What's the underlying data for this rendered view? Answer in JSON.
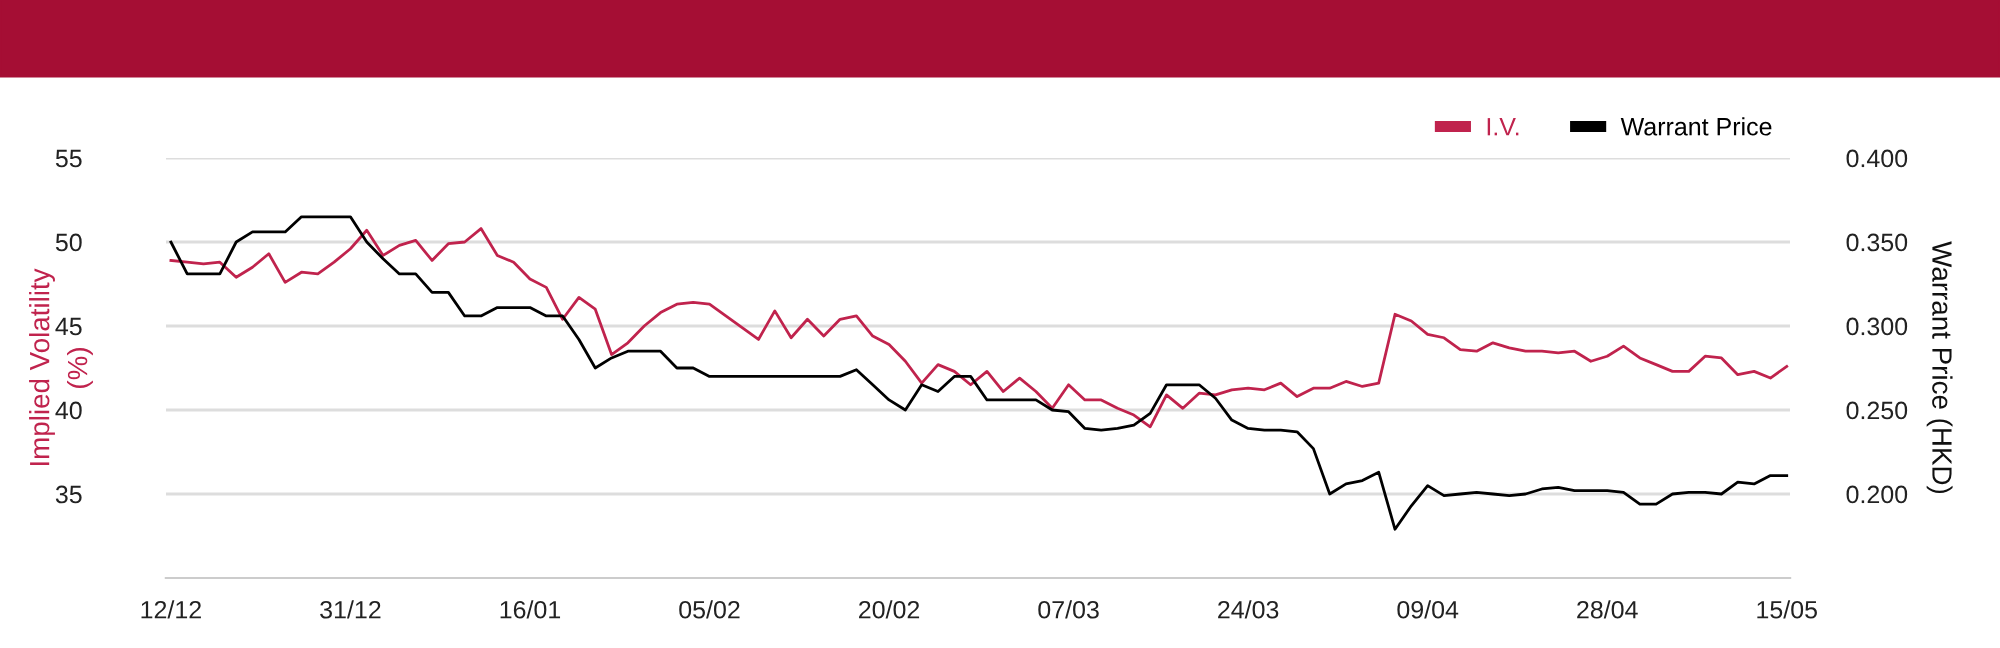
{
  "chart_data": {
    "type": "line",
    "categories": [
      "12/12",
      null,
      null,
      null,
      null,
      null,
      null,
      null,
      null,
      null,
      null,
      "31/12",
      null,
      null,
      null,
      null,
      null,
      null,
      null,
      null,
      null,
      null,
      "16/01",
      null,
      null,
      null,
      null,
      null,
      null,
      null,
      null,
      null,
      null,
      "05/02",
      null,
      null,
      null,
      null,
      null,
      null,
      null,
      null,
      null,
      null,
      "20/02",
      null,
      null,
      null,
      null,
      null,
      null,
      null,
      null,
      null,
      null,
      "07/03",
      null,
      null,
      null,
      null,
      null,
      null,
      null,
      null,
      null,
      null,
      "24/03",
      null,
      null,
      null,
      null,
      null,
      null,
      null,
      null,
      null,
      null,
      "09/04",
      null,
      null,
      null,
      null,
      null,
      null,
      null,
      null,
      null,
      null,
      "28/04",
      null,
      null,
      null,
      null,
      null,
      null,
      null,
      null,
      null,
      null,
      "15/05"
    ],
    "series": [
      {
        "name": "I.V.",
        "color": "#c0234d",
        "values": [
          48.9,
          48.8,
          48.7,
          48.8,
          47.9,
          48.5,
          49.3,
          47.6,
          48.2,
          48.1,
          48.8,
          49.6,
          50.7,
          49.2,
          49.8,
          50.1,
          48.9,
          49.9,
          50.0,
          50.8,
          49.2,
          48.8,
          47.8,
          47.3,
          45.4,
          46.7,
          46.0,
          43.3,
          44.0,
          45.0,
          45.8,
          46.3,
          46.4,
          46.3,
          45.6,
          44.9,
          44.2,
          45.9,
          44.3,
          45.4,
          44.4,
          45.4,
          45.6,
          44.4,
          43.9,
          42.9,
          41.6,
          42.7,
          42.3,
          41.5,
          42.3,
          41.1,
          41.9,
          41.1,
          40.1,
          41.5,
          40.6,
          40.6,
          40.1,
          39.7,
          39.0,
          40.9,
          40.1,
          41.0,
          40.9,
          41.2,
          41.3,
          41.2,
          41.6,
          40.8,
          41.3,
          41.3,
          41.7,
          41.4,
          41.6,
          45.7,
          45.3,
          44.5,
          44.3,
          43.6,
          43.5,
          44.0,
          43.7,
          43.5,
          43.5,
          43.4,
          43.5,
          42.9,
          43.2,
          43.8,
          43.1,
          42.7,
          42.3,
          42.3,
          43.2,
          43.1,
          42.1,
          42.3,
          41.9,
          42.6
        ]
      },
      {
        "name": "Warrant Price",
        "color": "#000000",
        "axis": "y2",
        "values": [
          0.35,
          0.331,
          0.331,
          0.331,
          0.35,
          0.356,
          0.356,
          0.356,
          0.365,
          0.365,
          0.365,
          0.365,
          0.35,
          0.34,
          0.331,
          0.331,
          0.32,
          0.32,
          0.306,
          0.306,
          0.311,
          0.311,
          0.311,
          0.306,
          0.306,
          0.292,
          0.275,
          0.281,
          0.285,
          0.285,
          0.285,
          0.275,
          0.275,
          0.27,
          0.27,
          0.27,
          0.27,
          0.27,
          0.27,
          0.27,
          0.27,
          0.27,
          0.274,
          0.265,
          0.256,
          0.25,
          0.265,
          0.261,
          0.27,
          0.27,
          0.256,
          0.256,
          0.256,
          0.256,
          0.25,
          0.249,
          0.239,
          0.238,
          0.239,
          0.241,
          0.248,
          0.265,
          0.265,
          0.265,
          0.257,
          0.244,
          0.239,
          0.238,
          0.238,
          0.237,
          0.227,
          0.2,
          0.206,
          0.208,
          0.213,
          0.179,
          0.193,
          0.205,
          0.199,
          0.2,
          0.201,
          0.2,
          0.199,
          0.2,
          0.203,
          0.204,
          0.202,
          0.202,
          0.202,
          0.201,
          0.194,
          0.194,
          0.2,
          0.201,
          0.201,
          0.2,
          0.207,
          0.206,
          0.211,
          0.211
        ]
      }
    ],
    "ylabel": "Implied Volatility\n(%)",
    "y2label": "Warrant Price (HKD)",
    "ylim": [
      30,
      55
    ],
    "yticks": [
      35,
      40,
      45,
      50,
      55
    ],
    "y2lim": [
      0.15,
      0.4
    ],
    "y2ticks": [
      {
        "value": 0.2,
        "label": "0.200"
      },
      {
        "value": 0.25,
        "label": "0.250"
      },
      {
        "value": 0.3,
        "label": "0.300"
      },
      {
        "value": 0.35,
        "label": "0.350"
      },
      {
        "value": 0.4,
        "label": "0.400"
      }
    ],
    "grid": "y",
    "legend": "top right",
    "marker": "none",
    "line_style": "solid"
  }
}
